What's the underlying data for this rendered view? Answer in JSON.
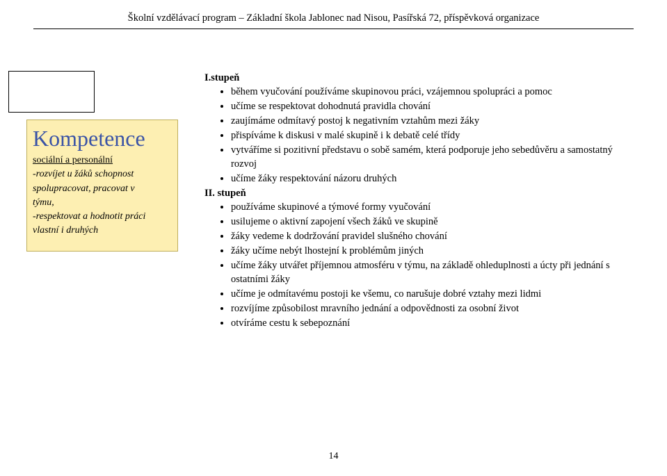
{
  "header": "Školní vzdělávací program – Základní škola Jablonec nad Nisou, Pasířská 72, příspěvková organizace",
  "kompetence": {
    "title": "Kompetence",
    "heading": "sociální a personální",
    "lines": [
      "-rozvíjet u žáků schopnost",
      "spolupracovat, pracovat v",
      "týmu,",
      "-respektovat a hodnotit práci",
      "vlastní i druhých"
    ]
  },
  "right": {
    "stage1_label": "I.stupeň",
    "stage1_items": [
      "během vyučování používáme skupinovou práci, vzájemnou spolupráci a pomoc",
      "učíme se respektovat dohodnutá pravidla chování",
      "zaujímáme odmítavý postoj k negativním vztahům mezi žáky",
      "přispíváme k diskusi v malé skupině i k debatě celé třídy",
      "vytváříme si pozitivní představu o sobě samém, která podporuje jeho sebedůvěru a samostatný rozvoj",
      "učíme žáky respektování názoru druhých"
    ],
    "stage2_label": "II. stupeň",
    "stage2_items": [
      "používáme skupinové a týmové formy vyučování",
      "usilujeme o aktivní zapojení všech žáků ve skupině",
      "žáky vedeme k dodržování pravidel slušného chování",
      "žáky učíme nebýt lhostejní k problémům jiných",
      "učíme žáky utvářet příjemnou atmosféru v týmu, na základě ohleduplnosti a úcty při jednání s ostatními žáky",
      "učíme je odmítavému postoji ke všemu, co narušuje dobré vztahy mezi lidmi",
      "rozvíjíme způsobilost mravního jednání a odpovědnosti za osobní život",
      "otvíráme cestu k sebepoznání"
    ]
  },
  "page_number": "14"
}
